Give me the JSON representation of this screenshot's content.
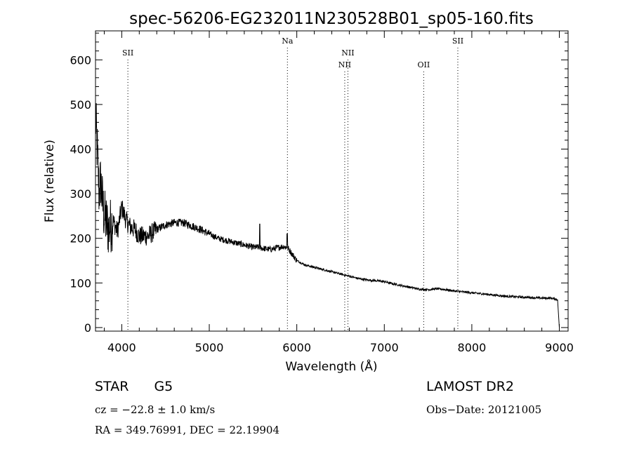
{
  "chart_data": {
    "type": "line",
    "title": "spec-56206-EG232011N230528B01_sp05-160.fits",
    "xlabel": "Wavelength (Å)",
    "ylabel": "Flux (relative)",
    "xlim": [
      3700,
      9100
    ],
    "ylim": [
      -8,
      665
    ],
    "x_ticks": [
      4000,
      5000,
      6000,
      7000,
      8000,
      9000
    ],
    "y_ticks": [
      0,
      100,
      200,
      300,
      400,
      500,
      600
    ],
    "grid": false,
    "series": [
      {
        "x": [
          3700,
          3720,
          3740,
          3760,
          3780,
          3800,
          3850,
          3900,
          3950,
          4000,
          4050,
          4100,
          4150,
          4200,
          4300,
          4400,
          4500,
          4600,
          4700,
          4800,
          4900,
          5000,
          5100,
          5200,
          5300,
          5400,
          5500,
          5580,
          5600,
          5700,
          5800,
          5850,
          5900,
          6000,
          6100,
          6200,
          6300,
          6400,
          6500,
          6600,
          6700,
          6800,
          6900,
          7000,
          7100,
          7200,
          7300,
          7400,
          7500,
          7600,
          7700,
          7800,
          7900,
          8000,
          8100,
          8200,
          8300,
          8400,
          8500,
          8600,
          8700,
          8800,
          8900,
          8980,
          9000
        ],
        "y": [
          470,
          400,
          300,
          330,
          280,
          250,
          220,
          240,
          215,
          270,
          240,
          225,
          220,
          205,
          205,
          220,
          230,
          235,
          235,
          228,
          220,
          210,
          200,
          195,
          190,
          185,
          180,
          180,
          178,
          175,
          180,
          182,
          178,
          150,
          140,
          135,
          130,
          125,
          120,
          115,
          110,
          107,
          105,
          103,
          98,
          94,
          90,
          86,
          85,
          87,
          85,
          82,
          80,
          78,
          76,
          74,
          72,
          70,
          69,
          68,
          67,
          66,
          66,
          63,
          0
        ]
      }
    ],
    "spikes": [
      {
        "x": 5577,
        "y": 232
      },
      {
        "x": 5890,
        "y": 210
      }
    ],
    "lines": [
      {
        "label": "SII",
        "x": 4070,
        "row": 1
      },
      {
        "label": "Na",
        "x": 5893,
        "row": 0
      },
      {
        "label": "NII",
        "x": 6548,
        "row": 2
      },
      {
        "label": "NII",
        "x": 6584,
        "row": 1
      },
      {
        "label": "OII",
        "x": 7450,
        "row": 2
      },
      {
        "label": "SII",
        "x": 7840,
        "row": 0
      }
    ]
  },
  "info": {
    "class_label": "STAR",
    "subclass": "G5",
    "cz": "cz = −22.8 ± 1.0 km/s",
    "coords": "RA = 349.76991, DEC =  22.19904",
    "survey": "LAMOST DR2",
    "obs_date": "Obs−Date: 20121005"
  }
}
